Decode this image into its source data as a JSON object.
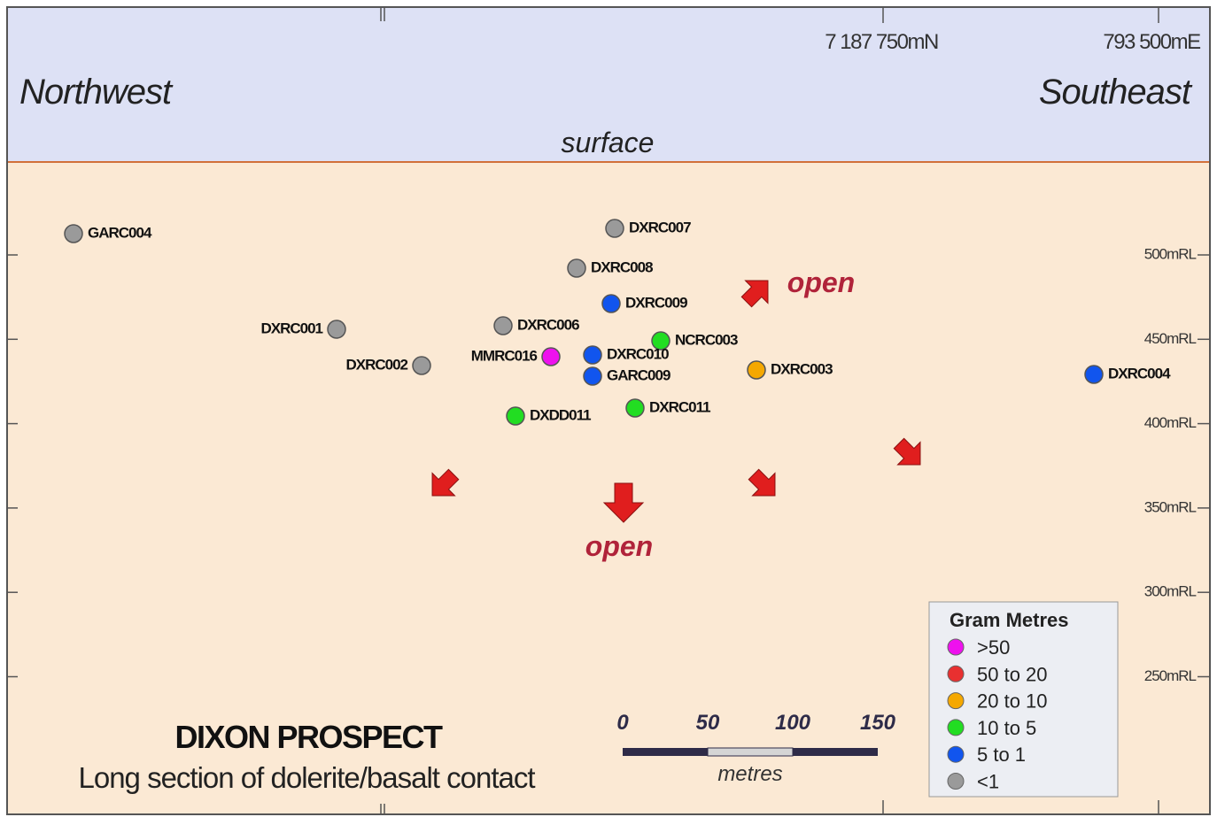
{
  "header": {
    "northing": "7 187 750mN",
    "easting": "793 500mE",
    "left": "Northwest",
    "right": "Southeast",
    "surface": "surface"
  },
  "rl_labels": [
    "500mRL",
    "450mRL",
    "400mRL",
    "350mRL",
    "300mRL",
    "250mRL"
  ],
  "holes": [
    {
      "label": "GARC004",
      "color": "#9a9a9a"
    },
    {
      "label": "DXRC007",
      "color": "#9a9a9a"
    },
    {
      "label": "DXRC008",
      "color": "#9a9a9a"
    },
    {
      "label": "DXRC009",
      "color": "#1155ee"
    },
    {
      "label": "DXRC001",
      "color": "#9a9a9a"
    },
    {
      "label": "DXRC006",
      "color": "#9a9a9a"
    },
    {
      "label": "NCRC003",
      "color": "#22dd22"
    },
    {
      "label": "DXRC002",
      "color": "#9a9a9a"
    },
    {
      "label": "MMRC016",
      "color": "#ee11ee"
    },
    {
      "label": "DXRC010",
      "color": "#1155ee"
    },
    {
      "label": "GARC009",
      "color": "#1155ee"
    },
    {
      "label": "DXRC003",
      "color": "#f5a800"
    },
    {
      "label": "DXRC004",
      "color": "#1155ee"
    },
    {
      "label": "DXRC011",
      "color": "#22dd22"
    },
    {
      "label": "DXDD011",
      "color": "#22dd22"
    }
  ],
  "open_labels": [
    "open",
    "open"
  ],
  "title": "DIXON PROSPECT",
  "subtitle": "Long section of dolerite/basalt contact",
  "scale": {
    "ticks": [
      0,
      50,
      100,
      150
    ],
    "unit": "metres"
  },
  "legend": {
    "title": "Gram Metres",
    "entries": [
      {
        "label": ">50",
        "color": "#ee11ee"
      },
      {
        "label": "50 to 20",
        "color": "#e83030"
      },
      {
        "label": "20 to 10",
        "color": "#f5a800"
      },
      {
        "label": "10 to 5",
        "color": "#22dd22"
      },
      {
        "label": "5 to 1",
        "color": "#1155ee"
      },
      {
        "label": "<1",
        "color": "#9a9a9a"
      }
    ]
  }
}
